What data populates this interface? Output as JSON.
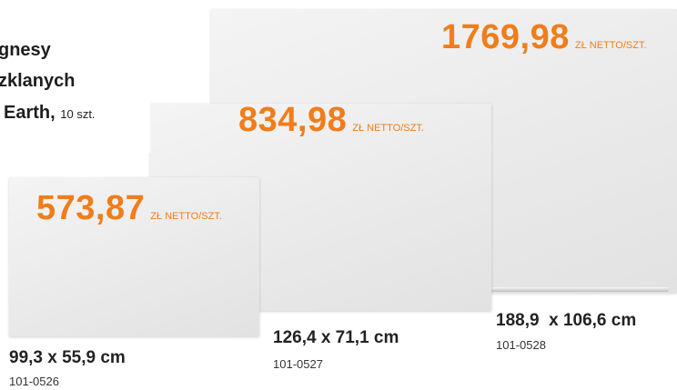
{
  "intro": {
    "lines": [
      "gnesy",
      "zklanych"
    ],
    "last_line": "Earth,",
    "qty": "10 szt."
  },
  "products": [
    {
      "price": "573,87",
      "unit": "ZŁ NETTO/SZT.",
      "size": "99,3 x 55,9 cm",
      "code": "101-0526"
    },
    {
      "price": "834,98",
      "unit": "ZŁ NETTO/SZT.",
      "size": "126,4 x 71,1 cm",
      "code": "101-0527"
    },
    {
      "price": "1769,98",
      "unit": "ZŁ NETTO/SZT.",
      "size": "188,9  x 106,6 cm",
      "code": "101-0528"
    }
  ]
}
